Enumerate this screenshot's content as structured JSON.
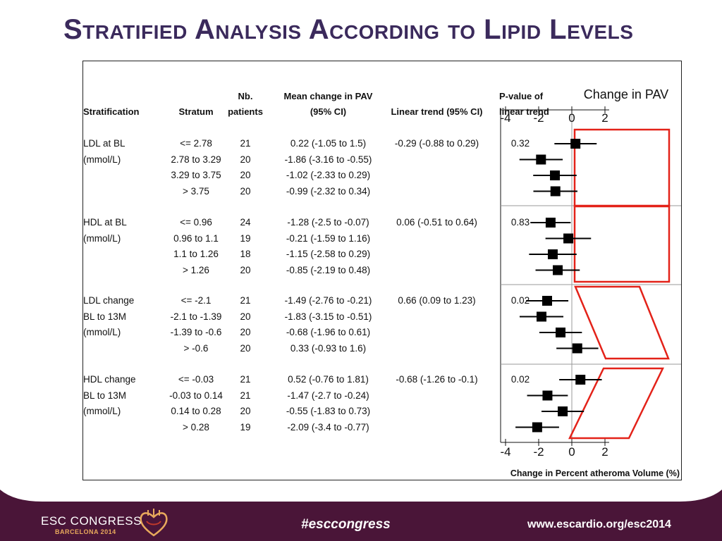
{
  "slide": {
    "title": "Stratified Analysis According to Lipid Levels"
  },
  "table": {
    "headers": {
      "stratification": "Stratification",
      "stratum": "Stratum",
      "nb_line1": "Nb.",
      "nb_line2": "patients",
      "mean_line1": "Mean change in PAV",
      "mean_line2": "(95% CI)",
      "linear": "Linear trend (95% CI)",
      "pvalue_line1": "P-value of",
      "pvalue_line2": "linear trend"
    },
    "groups": [
      {
        "label": [
          "LDL at BL",
          "(mmol/L)"
        ],
        "linear_trend": "-0.29 (-0.88 to 0.29)",
        "p_value": "0.32",
        "rows": [
          {
            "stratum": "<= 2.78",
            "n": "21",
            "mean": "0.22 (-1.05 to 1.5)"
          },
          {
            "stratum": "2.78 to 3.29",
            "n": "20",
            "mean": "-1.86 (-3.16 to -0.55)"
          },
          {
            "stratum": "3.29 to 3.75",
            "n": "20",
            "mean": "-1.02 (-2.33 to 0.29)"
          },
          {
            "stratum": "> 3.75",
            "n": "20",
            "mean": "-0.99 (-2.32 to 0.34)"
          }
        ]
      },
      {
        "label": [
          "HDL at BL",
          "(mmol/L)"
        ],
        "linear_trend": "0.06 (-0.51 to 0.64)",
        "p_value": "0.83",
        "rows": [
          {
            "stratum": "<= 0.96",
            "n": "24",
            "mean": "-1.28 (-2.5 to -0.07)"
          },
          {
            "stratum": "0.96 to 1.1",
            "n": "19",
            "mean": "-0.21 (-1.59 to 1.16)"
          },
          {
            "stratum": "1.1 to 1.26",
            "n": "18",
            "mean": "-1.15 (-2.58 to 0.29)"
          },
          {
            "stratum": "> 1.26",
            "n": "20",
            "mean": "-0.85 (-2.19 to 0.48)"
          }
        ]
      },
      {
        "label": [
          "LDL change",
          "BL to 13M",
          "(mmol/L)"
        ],
        "linear_trend": "0.66 (0.09 to 1.23)",
        "p_value": "0.02",
        "rows": [
          {
            "stratum": "<= -2.1",
            "n": "21",
            "mean": "-1.49 (-2.76 to -0.21)"
          },
          {
            "stratum": "-2.1 to -1.39",
            "n": "20",
            "mean": "-1.83 (-3.15 to -0.51)"
          },
          {
            "stratum": "-1.39 to -0.6",
            "n": "20",
            "mean": "-0.68 (-1.96 to 0.61)"
          },
          {
            "stratum": "> -0.6",
            "n": "20",
            "mean": "0.33 (-0.93 to 1.6)"
          }
        ]
      },
      {
        "label": [
          "HDL change",
          "BL to 13M",
          "(mmol/L)"
        ],
        "linear_trend": "-0.68 (-1.26 to -0.1)",
        "p_value": "0.02",
        "rows": [
          {
            "stratum": "<= -0.03",
            "n": "21",
            "mean": "0.52 (-0.76 to 1.81)"
          },
          {
            "stratum": "-0.03 to 0.14",
            "n": "21",
            "mean": "-1.47 (-2.7 to -0.24)"
          },
          {
            "stratum": "0.14 to 0.28",
            "n": "20",
            "mean": "-0.55 (-1.83 to 0.73)"
          },
          {
            "stratum": "> 0.28",
            "n": "19",
            "mean": "-2.09 (-3.4 to -0.77)"
          }
        ]
      }
    ]
  },
  "chart_data": {
    "type": "scatter",
    "title": "Change in PAV",
    "xlabel": "Change in Percent atheroma Volume (%)",
    "xlim": [
      -4,
      2
    ],
    "xticks": [
      "-4",
      "-2",
      "0",
      "2"
    ],
    "grid": false,
    "series": [
      {
        "name": "LDL at BL",
        "points": [
          {
            "mean": 0.22,
            "lo": -1.05,
            "hi": 1.5
          },
          {
            "mean": -1.86,
            "lo": -3.16,
            "hi": -0.55
          },
          {
            "mean": -1.02,
            "lo": -2.33,
            "hi": 0.29
          },
          {
            "mean": -0.99,
            "lo": -2.32,
            "hi": 0.34
          }
        ]
      },
      {
        "name": "HDL at BL",
        "points": [
          {
            "mean": -1.28,
            "lo": -2.5,
            "hi": -0.07
          },
          {
            "mean": -0.21,
            "lo": -1.59,
            "hi": 1.16
          },
          {
            "mean": -1.15,
            "lo": -2.58,
            "hi": 0.29
          },
          {
            "mean": -0.85,
            "lo": -2.19,
            "hi": 0.48
          }
        ]
      },
      {
        "name": "LDL change BL to 13M",
        "points": [
          {
            "mean": -1.49,
            "lo": -2.76,
            "hi": -0.21
          },
          {
            "mean": -1.83,
            "lo": -3.15,
            "hi": -0.51
          },
          {
            "mean": -0.68,
            "lo": -1.96,
            "hi": 0.61
          },
          {
            "mean": 0.33,
            "lo": -0.93,
            "hi": 1.6
          }
        ]
      },
      {
        "name": "HDL change BL to 13M",
        "points": [
          {
            "mean": 0.52,
            "lo": -0.76,
            "hi": 1.81
          },
          {
            "mean": -1.47,
            "lo": -2.7,
            "hi": -0.24
          },
          {
            "mean": -0.55,
            "lo": -1.83,
            "hi": 0.73
          },
          {
            "mean": -2.09,
            "lo": -3.4,
            "hi": -0.77
          }
        ]
      }
    ],
    "highlight_color": "#e32219"
  },
  "footer": {
    "congress_name": "ESC CONGRESS",
    "congress_city": "BARCELONA 2014",
    "hashtag": "#esccongress",
    "url": "www.escardio.org/esc2014",
    "background": "#4a1538",
    "accent": "#e8a95c"
  }
}
